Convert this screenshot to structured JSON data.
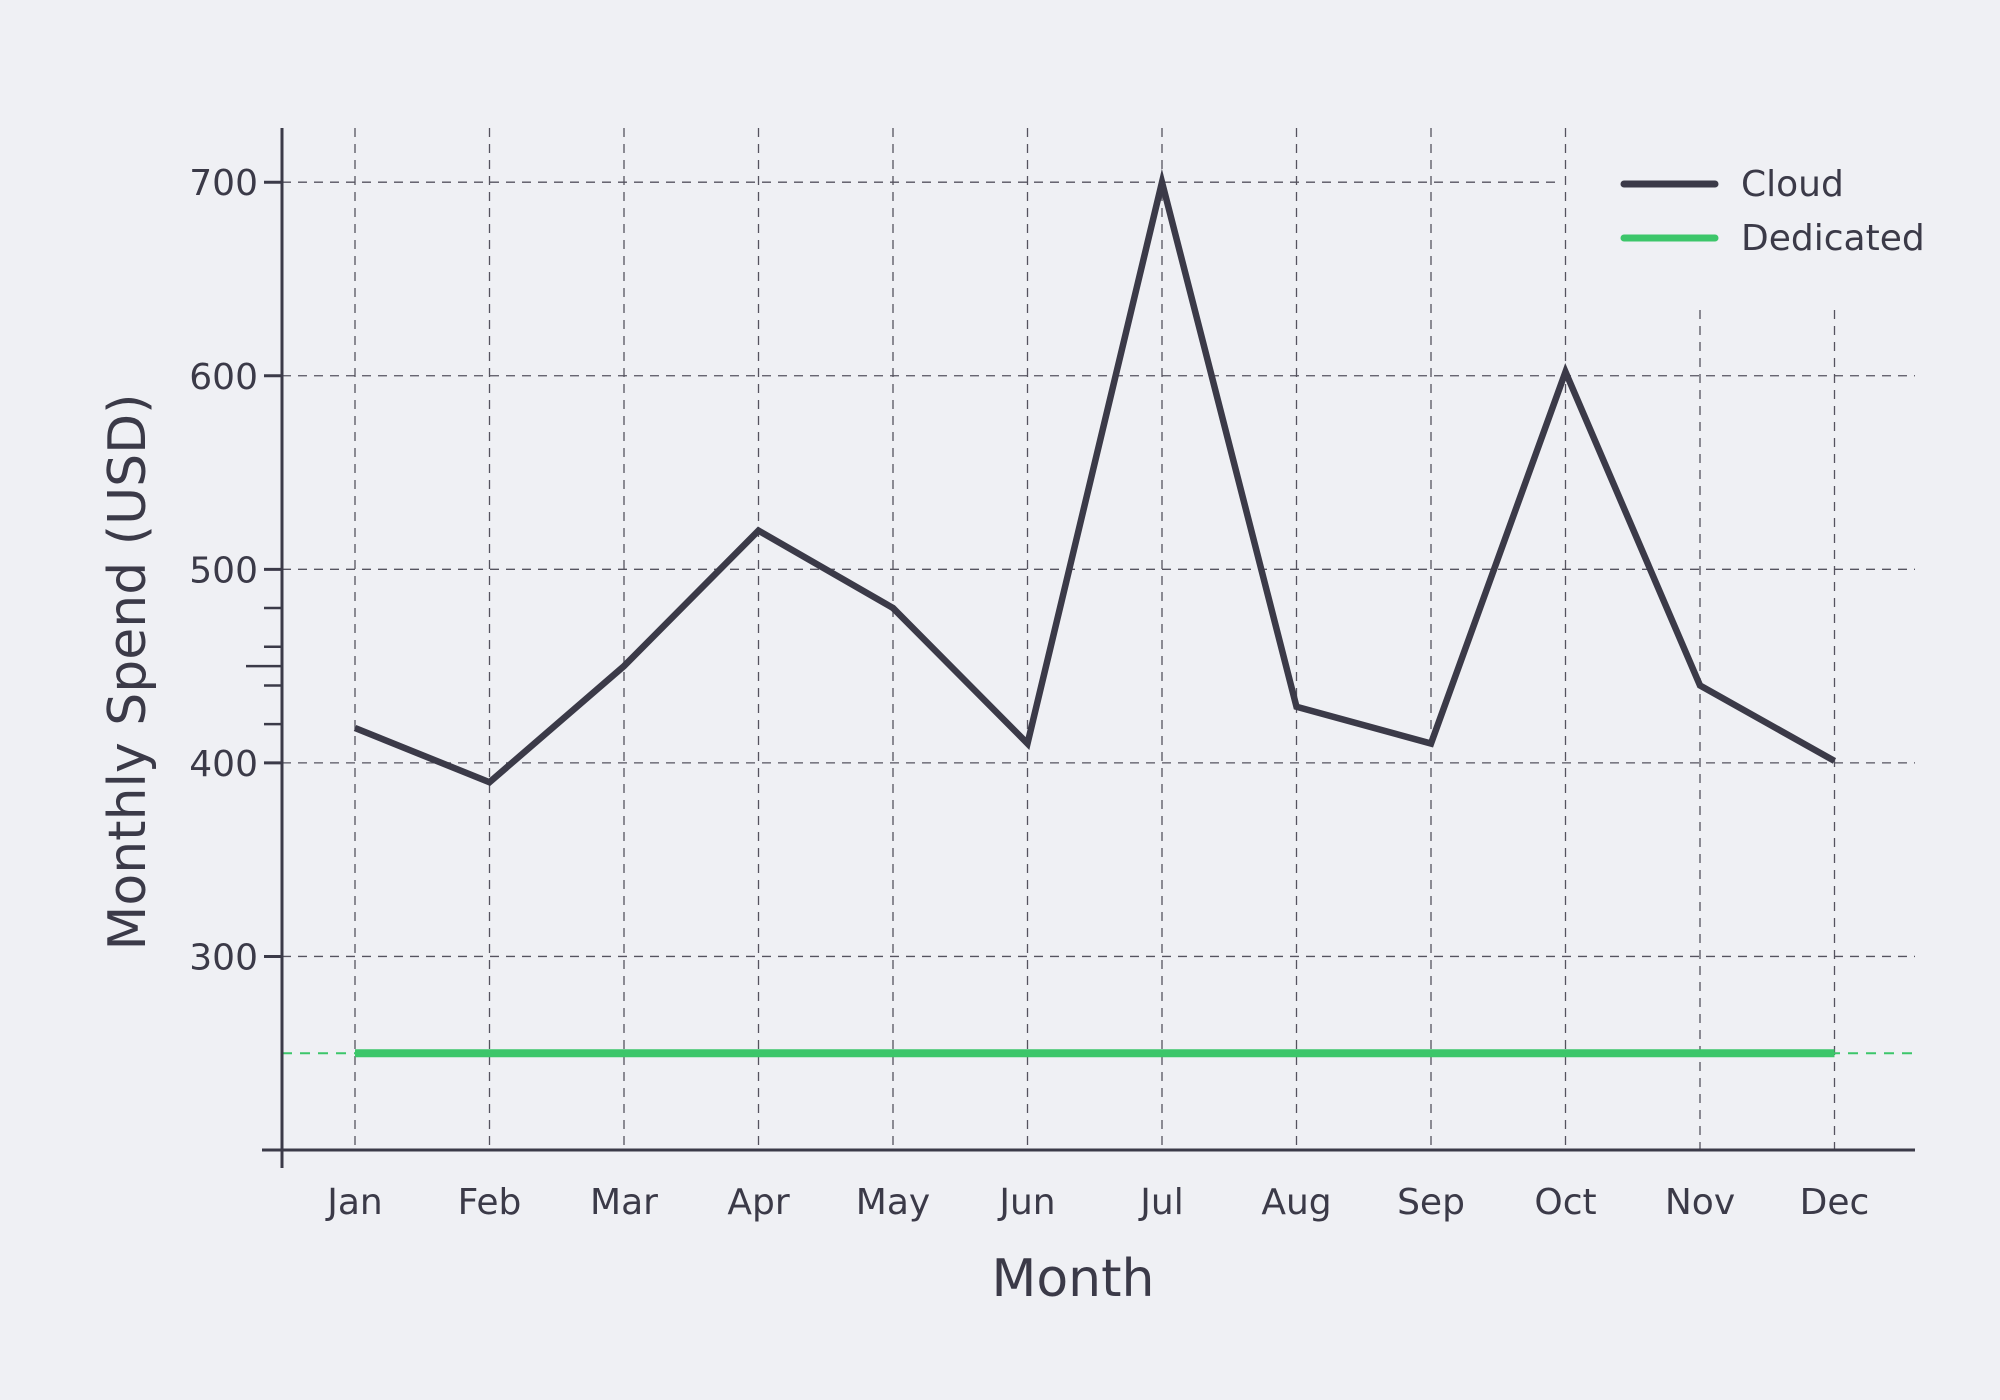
{
  "chart_data": {
    "type": "line",
    "title": "",
    "xlabel": "Month",
    "ylabel": "Monthly Spend (USD)",
    "categories": [
      "Jan",
      "Feb",
      "Mar",
      "Apr",
      "May",
      "Jun",
      "Jul",
      "Aug",
      "Sep",
      "Oct",
      "Nov",
      "Dec"
    ],
    "series": [
      {
        "name": "Cloud",
        "color": "#3b3a48",
        "values": [
          418,
          390,
          450,
          520,
          480,
          410,
          700,
          429,
          410,
          602,
          440,
          401
        ]
      },
      {
        "name": "Dedicated",
        "color": "#3cc66a",
        "values": [
          250,
          250,
          250,
          250,
          250,
          250,
          250,
          250,
          250,
          250,
          250,
          250
        ]
      }
    ],
    "reference_lines": [
      {
        "axis": "y",
        "value": 250,
        "color": "#3cc66a",
        "style": "dashed"
      }
    ],
    "ylim": [
      200,
      728
    ],
    "yticks": [
      300,
      400,
      500,
      600,
      700
    ],
    "grid": true,
    "grid_style": "dashed",
    "legend_position": "top-right"
  }
}
